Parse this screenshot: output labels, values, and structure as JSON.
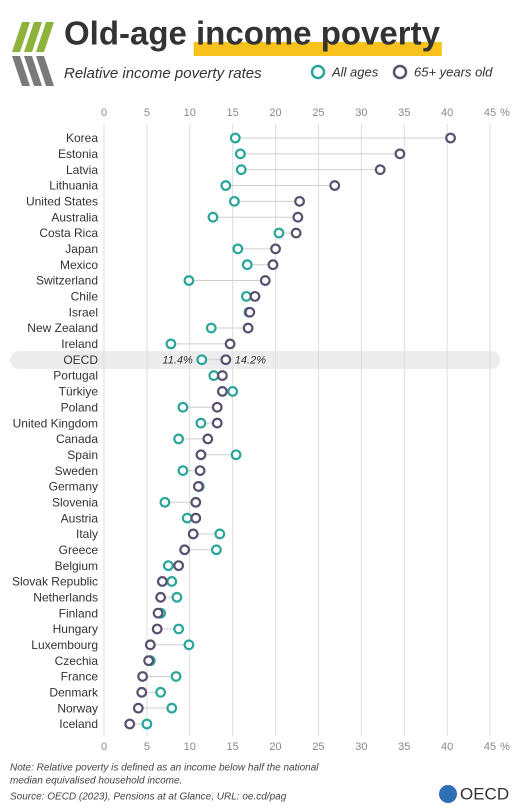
{
  "chart_data": {
    "type": "dot",
    "title": "Old-age income poverty",
    "subtitle": "Relative income poverty rates",
    "x_unit": "%",
    "categories": [
      "Korea",
      "Estonia",
      "Latvia",
      "Lithuania",
      "United States",
      "Australia",
      "Costa Rica",
      "Japan",
      "Mexico",
      "Switzerland",
      "Chile",
      "Israel",
      "New Zealand",
      "Ireland",
      "OECD",
      "Portugal",
      "Türkiye",
      "Poland",
      "United Kingdom",
      "Canada",
      "Spain",
      "Sweden",
      "Germany",
      "Slovenia",
      "Austria",
      "Italy",
      "Greece",
      "Belgium",
      "Slovak Republic",
      "Netherlands",
      "Finland",
      "Hungary",
      "Luxembourg",
      "Czechia",
      "France",
      "Denmark",
      "Norway",
      "Iceland"
    ],
    "series": [
      {
        "name": "All ages",
        "color": "#2aa59c",
        "values": [
          15.3,
          15.9,
          16.0,
          14.2,
          15.2,
          12.7,
          20.4,
          15.6,
          16.7,
          9.9,
          16.6,
          16.9,
          12.5,
          7.8,
          11.4,
          12.8,
          15.0,
          9.2,
          11.3,
          8.7,
          15.4,
          9.2,
          11.1,
          7.1,
          9.7,
          13.5,
          13.1,
          7.5,
          7.9,
          8.5,
          6.6,
          8.7,
          9.9,
          5.4,
          8.4,
          6.6,
          7.9,
          5.0
        ],
        "value_labels": [
          null,
          null,
          null,
          null,
          null,
          null,
          null,
          null,
          null,
          null,
          null,
          null,
          null,
          null,
          "11.4%",
          null,
          null,
          null,
          null,
          null,
          null,
          null,
          null,
          null,
          null,
          null,
          null,
          null,
          null,
          null,
          null,
          null,
          null,
          null,
          null,
          null,
          null,
          null
        ]
      },
      {
        "name": "65+ years old",
        "color": "#5b4f70",
        "values": [
          40.4,
          34.5,
          32.2,
          26.9,
          22.8,
          22.6,
          22.4,
          20.0,
          19.7,
          18.8,
          17.6,
          17.0,
          16.8,
          14.7,
          14.2,
          13.8,
          13.8,
          13.2,
          13.2,
          12.1,
          11.3,
          11.2,
          11.0,
          10.7,
          10.7,
          10.4,
          9.4,
          8.7,
          6.8,
          6.6,
          6.3,
          6.2,
          5.4,
          5.2,
          4.5,
          4.4,
          4.0,
          3.0
        ],
        "value_labels": [
          null,
          null,
          null,
          null,
          null,
          null,
          null,
          null,
          null,
          null,
          null,
          null,
          null,
          null,
          "14.2%",
          null,
          null,
          null,
          null,
          null,
          null,
          null,
          null,
          null,
          null,
          null,
          null,
          null,
          null,
          null,
          null,
          null,
          null,
          null,
          null,
          null,
          null,
          null
        ]
      }
    ],
    "xlim": [
      0,
      45
    ],
    "xticks": [
      0,
      5,
      10,
      15,
      20,
      25,
      30,
      35,
      40,
      45
    ],
    "grid": true,
    "note": [
      "Note:  Relative poverty is defined as an income below half the national",
      "median equivalised household income."
    ],
    "source": "Source: OECD (2023), Pensions at at Glance, URL: oe.cd/pag",
    "logo": "OECD"
  }
}
